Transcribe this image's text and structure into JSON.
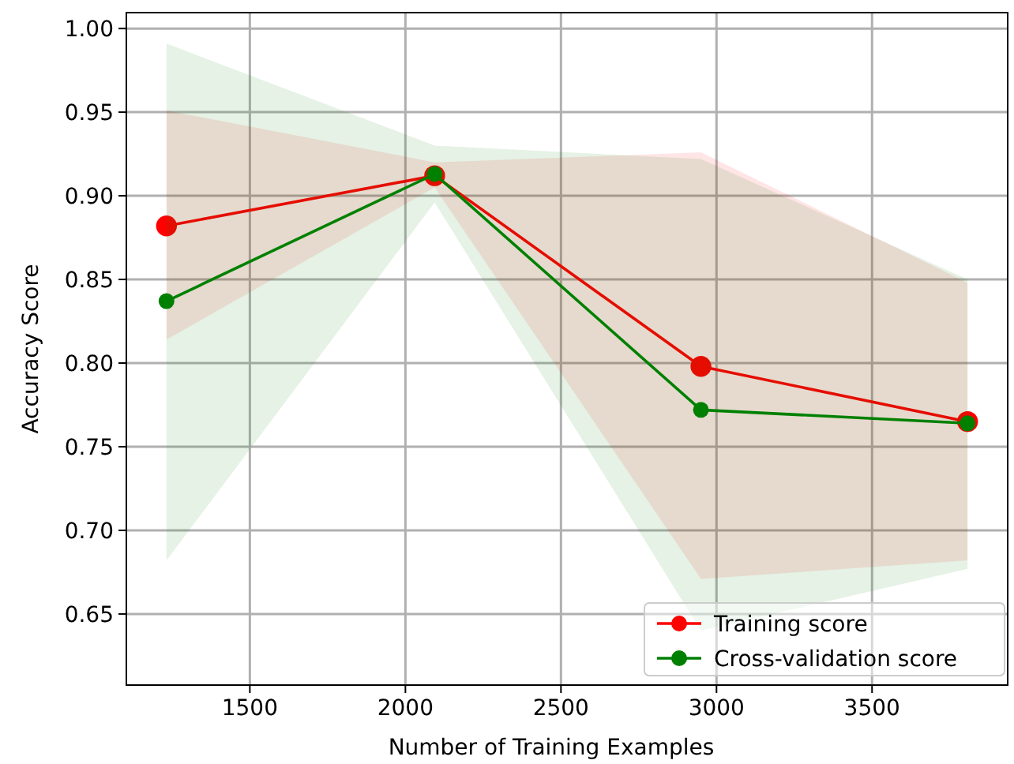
{
  "chart_data": {
    "type": "line",
    "xlabel": "Number of Training Examples",
    "ylabel": "Accuracy Score",
    "x": [
      1232,
      2094,
      2950,
      3807
    ],
    "xlim": [
      1103,
      3936
    ],
    "xticks": [
      1500,
      2000,
      2500,
      3000,
      3500
    ],
    "ylim": [
      0.6075,
      1.0095
    ],
    "yticks": [
      {
        "value": 0.65,
        "label": "0.65"
      },
      {
        "value": 0.7,
        "label": "0.70"
      },
      {
        "value": 0.75,
        "label": "0.75"
      },
      {
        "value": 0.8,
        "label": "0.80"
      },
      {
        "value": 0.85,
        "label": "0.85"
      },
      {
        "value": 0.9,
        "label": "0.90"
      },
      {
        "value": 0.95,
        "label": "0.95"
      },
      {
        "value": 1.0,
        "label": "1.00"
      }
    ],
    "series": [
      {
        "name": "Training score",
        "color": "#ff0000",
        "values": [
          0.882,
          0.912,
          0.798,
          0.765
        ],
        "lower": [
          0.814,
          0.905,
          0.671,
          0.682
        ],
        "upper": [
          0.951,
          0.92,
          0.926,
          0.848
        ]
      },
      {
        "name": "Cross-validation score",
        "color": "#008000",
        "values": [
          0.837,
          0.913,
          0.772,
          0.764
        ],
        "lower": [
          0.682,
          0.896,
          0.64,
          0.677
        ],
        "upper": [
          0.991,
          0.93,
          0.922,
          0.85
        ]
      }
    ],
    "grid": true,
    "legend": "bottom right",
    "marker": "circle",
    "line_style": "solid"
  }
}
